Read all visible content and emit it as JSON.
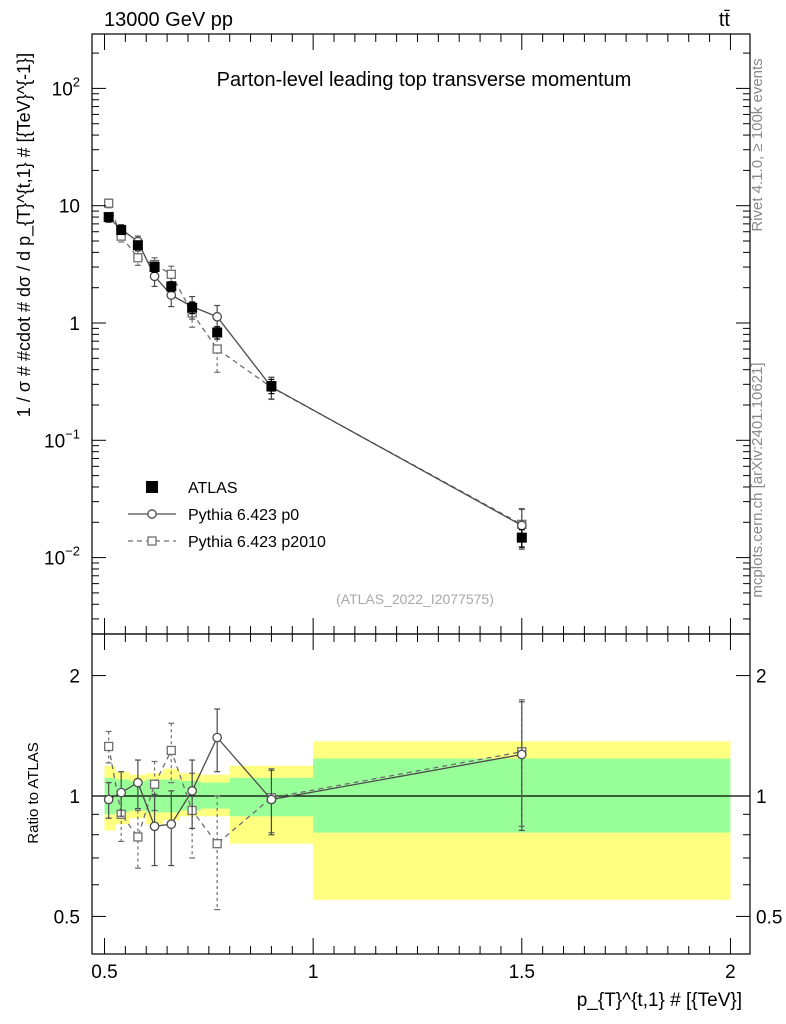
{
  "header": {
    "energy_label": "13000 GeV pp",
    "process_label": "tt̄"
  },
  "side_labels": {
    "rivet": "Rivet 4.1.0, ≥ 100k events",
    "mcplots": "mcplots.cern.ch [arXiv:2401.10621]"
  },
  "chart_data": [
    {
      "type": "scatter",
      "panel": "main",
      "title": "Parton-level leading top transverse momentum",
      "xlabel": "p_{T}^{t,1} # [{TeV}]",
      "ylabel": "1 / σ # #cdot # dσ / d p_{T}^{t,1} # [{TeV}^{-1}]",
      "yscale": "log",
      "xlim": [
        0.5,
        2.0
      ],
      "ylim": [
        0.002,
        300
      ],
      "analysis_id": "(ATLAS_2022_I2077575)",
      "legend": {
        "placement": "lower-left",
        "entries": [
          "ATLAS",
          "Pythia 6.423 p0",
          "Pythia 6.423 p2010"
        ]
      },
      "y_tick_labels": [
        {
          "value": 0.01,
          "base": "10",
          "exp": "−2"
        },
        {
          "value": 0.1,
          "base": "10",
          "exp": "−1"
        },
        {
          "value": 1,
          "base": "1",
          "exp": ""
        },
        {
          "value": 10,
          "base": "10",
          "exp": ""
        },
        {
          "value": 100,
          "base": "10",
          "exp": "2"
        }
      ],
      "series": [
        {
          "name": "ATLAS",
          "marker": "filled-square",
          "x": [
            0.51,
            0.54,
            0.58,
            0.62,
            0.66,
            0.71,
            0.77,
            0.9,
            1.5
          ],
          "y": [
            8.0,
            6.2,
            4.6,
            3.0,
            2.05,
            1.35,
            0.83,
            0.29,
            0.0148
          ],
          "yerr": [
            0.6,
            0.45,
            0.4,
            0.3,
            0.2,
            0.15,
            0.1,
            0.04,
            0.0025
          ]
        },
        {
          "name": "Pythia 6.423 p0",
          "marker": "open-circle",
          "line": "solid",
          "x": [
            0.51,
            0.54,
            0.58,
            0.62,
            0.66,
            0.71,
            0.77,
            0.9,
            1.5
          ],
          "y": [
            7.9,
            6.3,
            4.95,
            2.5,
            1.73,
            1.38,
            1.13,
            0.285,
            0.0188
          ],
          "yerr": [
            0.7,
            0.6,
            0.55,
            0.45,
            0.35,
            0.3,
            0.28,
            0.06,
            0.007
          ]
        },
        {
          "name": "Pythia 6.423 p2010",
          "marker": "open-square",
          "line": "dashed",
          "x": [
            0.51,
            0.54,
            0.58,
            0.62,
            0.66,
            0.71,
            0.77,
            0.9,
            1.5
          ],
          "y": [
            10.5,
            5.5,
            3.6,
            3.15,
            2.6,
            1.22,
            0.6,
            0.283,
            0.0192
          ],
          "yerr": [
            0.9,
            0.6,
            0.5,
            0.45,
            0.45,
            0.3,
            0.22,
            0.06,
            0.007
          ]
        }
      ]
    },
    {
      "type": "scatter",
      "panel": "ratio",
      "xlabel": "p_{T}^{t,1} # [{TeV}]",
      "ylabel": "Ratio to ATLAS",
      "yscale": "log",
      "xlim": [
        0.5,
        2.0
      ],
      "ylim": [
        0.4,
        2.5
      ],
      "x_tick_labels": [
        {
          "value": 0.5,
          "label": "0.5"
        },
        {
          "value": 1.0,
          "label": "1"
        },
        {
          "value": 1.5,
          "label": "1.5"
        },
        {
          "value": 2.0,
          "label": "2"
        }
      ],
      "y_tick_labels": [
        {
          "value": 0.5,
          "label": "0.5"
        },
        {
          "value": 1,
          "label": "1"
        },
        {
          "value": 2,
          "label": "2"
        }
      ],
      "bands": {
        "edges": [
          0.5,
          0.525,
          0.56,
          0.6,
          0.64,
          0.68,
          0.73,
          0.8,
          1.0,
          2.0
        ],
        "stat_syst_total": [
          [
            0.82,
            1.19
          ],
          [
            0.85,
            1.15
          ],
          [
            0.88,
            1.13
          ],
          [
            0.85,
            1.14
          ],
          [
            0.87,
            1.17
          ],
          [
            0.89,
            1.14
          ],
          [
            0.89,
            1.13
          ],
          [
            0.76,
            1.19
          ],
          [
            0.55,
            1.37
          ]
        ],
        "inner": [
          [
            0.9,
            1.11
          ],
          [
            0.91,
            1.1
          ],
          [
            0.92,
            1.09
          ],
          [
            0.91,
            1.1
          ],
          [
            0.91,
            1.1
          ],
          [
            0.92,
            1.09
          ],
          [
            0.93,
            1.08
          ],
          [
            0.89,
            1.11
          ],
          [
            0.81,
            1.24
          ]
        ]
      },
      "series": [
        {
          "name": "Pythia 6.423 p0",
          "marker": "open-circle",
          "line": "solid",
          "x": [
            0.51,
            0.54,
            0.58,
            0.62,
            0.66,
            0.71,
            0.77,
            0.9,
            1.5
          ],
          "y": [
            0.98,
            1.02,
            1.08,
            0.84,
            0.85,
            1.03,
            1.4,
            0.98,
            1.27
          ],
          "yerr": [
            0.1,
            0.13,
            0.15,
            0.17,
            0.18,
            0.2,
            0.25,
            0.18,
            0.45
          ]
        },
        {
          "name": "Pythia 6.423 p2010",
          "marker": "open-square",
          "line": "dashed",
          "x": [
            0.51,
            0.54,
            0.58,
            0.62,
            0.66,
            0.71,
            0.77,
            0.9,
            1.5
          ],
          "y": [
            1.33,
            0.9,
            0.79,
            1.07,
            1.3,
            0.92,
            0.76,
            0.99,
            1.29
          ],
          "yerr": [
            0.12,
            0.13,
            0.13,
            0.15,
            0.22,
            0.22,
            0.24,
            0.18,
            0.45
          ]
        }
      ]
    }
  ]
}
